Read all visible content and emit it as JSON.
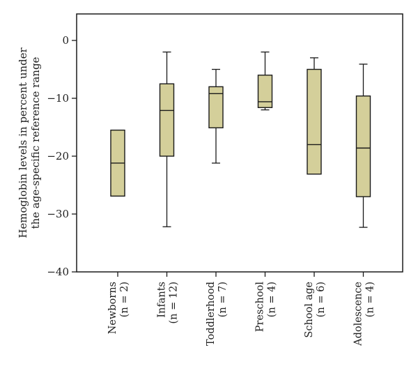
{
  "chart_data": {
    "type": "boxplot",
    "title": "",
    "xlabel": "",
    "ylabel": "Hemoglobin levels in percent under the age-specific reference range",
    "ylabel_lines": [
      "Hemoglobin levels in percent under",
      "the age-specific reference range"
    ],
    "ylim": [
      -40,
      4.5
    ],
    "yticks": [
      0,
      -10,
      -20,
      -30,
      -40
    ],
    "ytick_labels": [
      "0",
      "−10",
      "−20",
      "−30",
      "−40"
    ],
    "grid": false,
    "box_fill": "#d4cf9a",
    "box_stroke": "#1a1a1a",
    "categories": [
      {
        "name": "Newborns",
        "n_label": "(n = 2)",
        "n": 2,
        "whisker_high": -15.5,
        "q3": -15.5,
        "median": -21.2,
        "q1": -26.9,
        "whisker_low": -26.9
      },
      {
        "name": "Infants",
        "n_label": "(n = 12)",
        "n": 12,
        "whisker_high": -2.0,
        "q3": -7.5,
        "median": -12.1,
        "q1": -20.0,
        "whisker_low": -32.2
      },
      {
        "name": "Toddlerhood",
        "n_label": "(n = 7)",
        "n": 7,
        "whisker_high": -5.0,
        "q3": -8.0,
        "median": -9.2,
        "q1": -15.1,
        "whisker_low": -21.2
      },
      {
        "name": "Preschool",
        "n_label": "(n = 4)",
        "n": 4,
        "whisker_high": -2.0,
        "q3": -6.0,
        "median": -10.6,
        "q1": -11.6,
        "whisker_low": -12.0
      },
      {
        "name": "School age",
        "n_label": "(n = 6)",
        "n": 6,
        "whisker_high": -3.0,
        "q3": -5.0,
        "median": -18.0,
        "q1": -23.1,
        "whisker_low": -23.1
      },
      {
        "name": "Adolescence",
        "n_label": "(n = 4)",
        "n": 4,
        "whisker_high": -4.1,
        "q3": -9.6,
        "median": -18.6,
        "q1": -27.0,
        "whisker_low": -32.3
      }
    ]
  }
}
